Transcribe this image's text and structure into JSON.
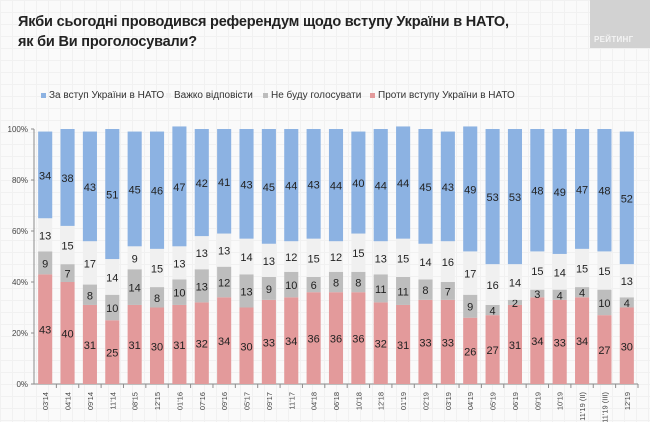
{
  "header": {
    "title": "Якби сьогодні проводився референдум щодо вступу України в НАТО, як би Ви проголосували?",
    "logo_text": "РЕЙТИНГ"
  },
  "chart_data": {
    "type": "bar",
    "stacked": true,
    "title": "Якби сьогодні проводився референдум щодо вступу України в НАТО, як би Ви проголосували?",
    "xlabel": "",
    "ylabel": "",
    "ylim": [
      0,
      100
    ],
    "yticks": [
      "0%",
      "20%",
      "40%",
      "60%",
      "80%",
      "100%"
    ],
    "legend_position": "top",
    "grid": false,
    "categories": [
      "03'14",
      "04'14",
      "09'14",
      "11'14",
      "08'15",
      "12'15",
      "01'16",
      "07'16",
      "09'16",
      "05'17",
      "09'17",
      "11'17",
      "04'18",
      "06'18",
      "10'18",
      "12'18",
      "01'19",
      "02'19",
      "03'19",
      "04'19",
      "05'19",
      "06'19",
      "09'19",
      "10'19",
      "11'19 (ІІ)",
      "11'19 (ІІІ)",
      "12'19"
    ],
    "series": [
      {
        "name": "Проти вступу України в НАТО",
        "color": "#e39a9b",
        "values": [
          43,
          40,
          31,
          25,
          31,
          30,
          31,
          32,
          34,
          30,
          33,
          34,
          36,
          36,
          36,
          32,
          31,
          33,
          33,
          26,
          27,
          31,
          34,
          33,
          34,
          27,
          30
        ]
      },
      {
        "name": "Не буду голосувати",
        "color": "#bdbdbd",
        "values": [
          9,
          7,
          8,
          10,
          14,
          8,
          10,
          13,
          12,
          13,
          9,
          10,
          6,
          8,
          8,
          11,
          11,
          8,
          7,
          9,
          4,
          2,
          3,
          4,
          4,
          10,
          4
        ]
      },
      {
        "name": "Важко відповісти",
        "color": "#f0f0f0",
        "values": [
          13,
          15,
          17,
          14,
          9,
          15,
          13,
          13,
          13,
          14,
          13,
          12,
          15,
          12,
          15,
          13,
          15,
          14,
          16,
          17,
          16,
          14,
          15,
          14,
          15,
          15,
          13
        ]
      },
      {
        "name": "За вступ України в НАТО",
        "color": "#8cb2e2",
        "values": [
          34,
          38,
          43,
          51,
          45,
          46,
          47,
          42,
          41,
          43,
          45,
          44,
          43,
          44,
          40,
          44,
          44,
          45,
          43,
          49,
          53,
          53,
          48,
          49,
          47,
          48,
          52
        ]
      }
    ],
    "legend": [
      {
        "name": "За вступ України в НАТО",
        "color": "#8cb2e2"
      },
      {
        "name": "Важко відповісти",
        "color": "#f0f0f0"
      },
      {
        "name": "Не буду голосувати",
        "color": "#bdbdbd"
      },
      {
        "name": "Проти вступу України в НАТО",
        "color": "#e39a9b"
      }
    ]
  }
}
